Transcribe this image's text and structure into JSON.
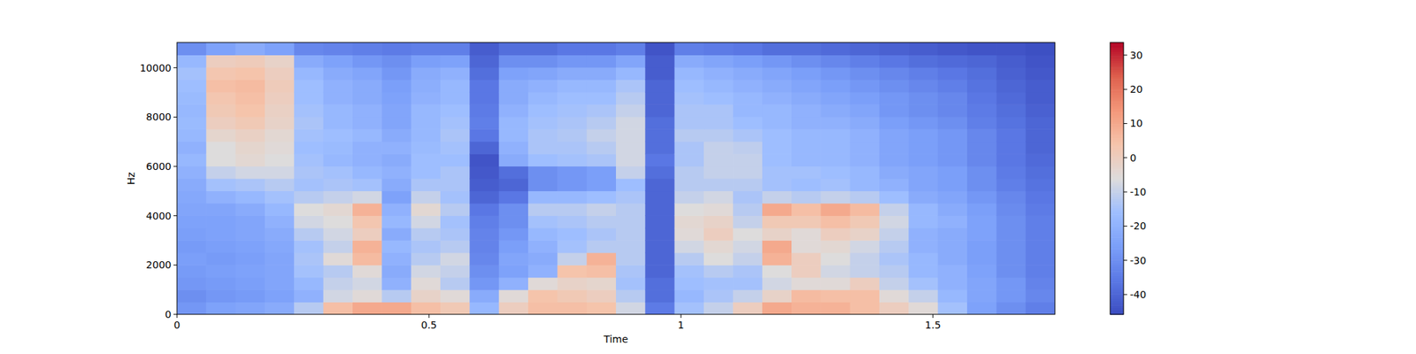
{
  "chart_data": {
    "type": "heatmap",
    "x_label": "Time",
    "y_label": "Hz",
    "xlim": [
      0,
      1.742
    ],
    "ylim": [
      0,
      11025
    ],
    "xticks": [
      0,
      0.5,
      1,
      1.5
    ],
    "yticks": [
      0,
      2000,
      4000,
      6000,
      8000,
      10000
    ],
    "colorbar": {
      "range": [
        -45.8,
        33.7
      ],
      "ticks": [
        -40,
        -30,
        -20,
        -10,
        0,
        10,
        20,
        30
      ]
    },
    "values": [
      [
        -28,
        -30,
        -28,
        -27,
        -26,
        -27,
        -26,
        -25,
        -24,
        -23,
        -22,
        -20,
        -18,
        -20,
        -18,
        -17,
        -18,
        -17,
        -16,
        -15,
        -18,
        -30
      ],
      [
        -25,
        -28,
        -27,
        -26,
        -27,
        -26,
        -25,
        -25,
        -24,
        -20,
        -15,
        -10,
        -6,
        -6,
        -3,
        0,
        2,
        3,
        5,
        3,
        0,
        -25
      ],
      [
        -24,
        -27,
        -26,
        -25,
        -26,
        -25,
        -24,
        -24,
        -22,
        -18,
        -14,
        -8,
        -4,
        -3,
        -1,
        2,
        4,
        5,
        6,
        4,
        1,
        -22
      ],
      [
        -22,
        -25,
        -24,
        -24,
        -24,
        -23,
        -22,
        -20,
        -18,
        -15,
        -12,
        -8,
        -6,
        -5,
        -4,
        -2,
        -1,
        0,
        1,
        0,
        -2,
        -25
      ],
      [
        -12,
        -20,
        -18,
        -15,
        -14,
        -15,
        -12,
        -8,
        -6,
        -12,
        -15,
        -14,
        -15,
        -16,
        -15,
        -14,
        -15,
        -16,
        -16,
        -18,
        -22,
        -32
      ],
      [
        5,
        -8,
        -10,
        -12,
        -5,
        -10,
        -8,
        -6,
        -4,
        -10,
        -14,
        -15,
        -18,
        -17,
        -16,
        -18,
        -18,
        -20,
        -20,
        -22,
        -25,
        -33
      ],
      [
        10,
        -5,
        -8,
        -5,
        6,
        8,
        0,
        3,
        8,
        -8,
        -15,
        -18,
        -20,
        -20,
        -18,
        -20,
        -20,
        -22,
        -22,
        -24,
        -28,
        -34
      ],
      [
        10,
        -12,
        -20,
        -22,
        -20,
        -18,
        -22,
        -18,
        -20,
        -25,
        -22,
        -20,
        -22,
        -20,
        -22,
        -24,
        -24,
        -25,
        -26,
        -28,
        -30,
        -35
      ],
      [
        5,
        -2,
        -5,
        -8,
        -12,
        -14,
        -12,
        -8,
        -4,
        -10,
        -14,
        -16,
        -16,
        -17,
        -18,
        -18,
        -18,
        -20,
        -21,
        -22,
        -26,
        -34
      ],
      [
        2,
        -5,
        -12,
        -10,
        -8,
        -12,
        -14,
        -15,
        -12,
        -15,
        -14,
        -14,
        -16,
        -15,
        -14,
        -15,
        -16,
        -18,
        -18,
        -20,
        -25,
        -34
      ],
      [
        -18,
        -22,
        -28,
        -30,
        -32,
        -33,
        -33,
        -34,
        -36,
        -40,
        -42,
        -43,
        -44,
        -40,
        -36,
        -34,
        -35,
        -36,
        -36,
        -38,
        -40,
        -42
      ],
      [
        0,
        -5,
        -20,
        -25,
        -24,
        -26,
        -28,
        -30,
        -30,
        -36,
        -40,
        -38,
        -22,
        -20,
        -18,
        -18,
        -20,
        -22,
        -22,
        -25,
        -30,
        -38
      ],
      [
        5,
        4,
        -5,
        -20,
        -22,
        -20,
        -18,
        -15,
        -12,
        -18,
        -30,
        -30,
        -16,
        -14,
        -14,
        -15,
        -16,
        -18,
        -20,
        -24,
        -30,
        -38
      ],
      [
        5,
        2,
        -2,
        4,
        -10,
        -15,
        -16,
        -14,
        -12,
        -18,
        -28,
        -28,
        -15,
        -14,
        -13,
        -14,
        -15,
        -16,
        -18,
        -22,
        -28,
        -36
      ],
      [
        4,
        0,
        -3,
        5,
        8,
        -12,
        -14,
        -12,
        -10,
        -16,
        -26,
        -26,
        -14,
        -12,
        -10,
        -12,
        -14,
        -16,
        -18,
        -22,
        -28,
        -36
      ],
      [
        -8,
        -12,
        -15,
        -14,
        -12,
        -12,
        -12,
        -12,
        -12,
        -14,
        -16,
        -10,
        -8,
        -8,
        -8,
        -8,
        -10,
        -12,
        -14,
        -18,
        -24,
        -34
      ],
      [
        -35,
        -38,
        -38,
        -40,
        -40,
        -40,
        -40,
        -40,
        -40,
        -40,
        -40,
        -38,
        -36,
        -38,
        -38,
        -38,
        -40,
        -40,
        -40,
        -42,
        -42,
        -44
      ],
      [
        -15,
        -18,
        -16,
        -15,
        -12,
        -8,
        -5,
        -4,
        -6,
        -10,
        -12,
        -12,
        -14,
        -14,
        -12,
        -14,
        -14,
        -15,
        -16,
        -18,
        -22,
        -34
      ],
      [
        -10,
        -14,
        -15,
        -12,
        -6,
        -4,
        0,
        -2,
        -5,
        -8,
        -12,
        -10,
        -10,
        -10,
        -12,
        -14,
        -14,
        -16,
        -18,
        -20,
        -24,
        -35
      ],
      [
        0,
        -10,
        -15,
        -14,
        -10,
        -8,
        -6,
        -10,
        -12,
        -14,
        -12,
        -10,
        -10,
        -11,
        -14,
        -16,
        -18,
        -18,
        -20,
        -22,
        -26,
        -36
      ],
      [
        10,
        -2,
        -8,
        -6,
        8,
        10,
        -2,
        2,
        10,
        -10,
        -15,
        -15,
        -16,
        -16,
        -16,
        -18,
        -18,
        -20,
        -22,
        -24,
        -28,
        -38
      ],
      [
        8,
        6,
        -5,
        0,
        0,
        -5,
        -5,
        2,
        5,
        -12,
        -16,
        -15,
        -18,
        -18,
        -18,
        -20,
        -20,
        -22,
        -24,
        -26,
        -30,
        -38
      ],
      [
        8,
        5,
        -5,
        -8,
        -6,
        -4,
        0,
        5,
        10,
        -10,
        -15,
        -16,
        -18,
        -18,
        -18,
        -20,
        -22,
        -24,
        -26,
        -28,
        -32,
        -39
      ],
      [
        5,
        5,
        0,
        -10,
        -10,
        -8,
        -2,
        2,
        6,
        -12,
        -18,
        -18,
        -20,
        -20,
        -20,
        -22,
        -24,
        -26,
        -28,
        -30,
        -34,
        -40
      ],
      [
        0,
        -5,
        -10,
        -12,
        -14,
        -12,
        -10,
        -8,
        -10,
        -16,
        -20,
        -22,
        -24,
        -24,
        -24,
        -26,
        -28,
        -28,
        -30,
        -32,
        -36,
        -41
      ],
      [
        -5,
        -10,
        -15,
        -18,
        -18,
        -20,
        -20,
        -18,
        -18,
        -22,
        -24,
        -24,
        -26,
        -26,
        -26,
        -28,
        -30,
        -30,
        -32,
        -34,
        -38,
        -42
      ],
      [
        -15,
        -18,
        -20,
        -20,
        -22,
        -22,
        -22,
        -20,
        -22,
        -24,
        -26,
        -26,
        -28,
        -28,
        -28,
        -30,
        -32,
        -32,
        -34,
        -36,
        -39,
        -43
      ],
      [
        -25,
        -24,
        -24,
        -25,
        -26,
        -26,
        -25,
        -25,
        -26,
        -28,
        -30,
        -30,
        -32,
        -32,
        -32,
        -34,
        -35,
        -36,
        -37,
        -38,
        -40,
        -44
      ],
      [
        -30,
        -28,
        -28,
        -30,
        -30,
        -30,
        -30,
        -30,
        -31,
        -32,
        -34,
        -35,
        -36,
        -36,
        -36,
        -37,
        -38,
        -39,
        -40,
        -41,
        -42,
        -44
      ],
      [
        -34,
        -32,
        -33,
        -34,
        -34,
        -34,
        -34,
        -34,
        -35,
        -36,
        -37,
        -38,
        -39,
        -40,
        -40,
        -40,
        -41,
        -42,
        -42,
        -43,
        -44,
        -45
      ]
    ]
  }
}
